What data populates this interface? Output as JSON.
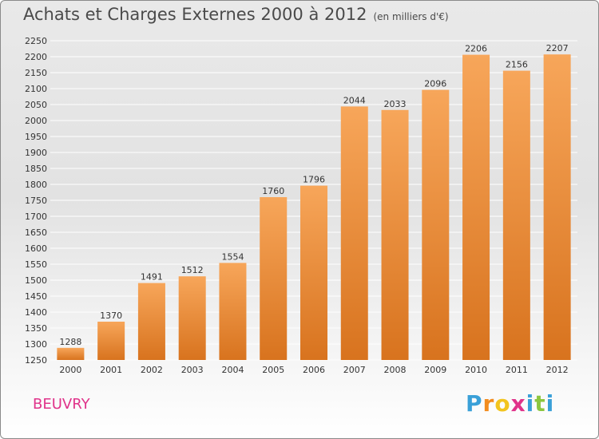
{
  "colors": {
    "bar_light": "#f7a65a",
    "bar_dark": "#d8731e",
    "grid": "#ffffff",
    "axis_text": "#333333",
    "city": "#e0338a"
  },
  "chart_data": {
    "type": "bar",
    "title": "Achats et Charges Externes 2000 à 2012",
    "subtitle": "(en milliers d'€)",
    "categories": [
      "2000",
      "2001",
      "2002",
      "2003",
      "2004",
      "2005",
      "2006",
      "2007",
      "2008",
      "2009",
      "2010",
      "2011",
      "2012"
    ],
    "values": [
      1288,
      1370,
      1491,
      1512,
      1554,
      1760,
      1796,
      2044,
      2033,
      2096,
      2206,
      2156,
      2207
    ],
    "ylim": [
      1250,
      2250
    ],
    "yticks": [
      1250,
      1300,
      1350,
      1400,
      1450,
      1500,
      1550,
      1600,
      1650,
      1700,
      1750,
      1800,
      1850,
      1900,
      1950,
      2000,
      2050,
      2100,
      2150,
      2200,
      2250
    ],
    "grid": true,
    "xlabel": "",
    "ylabel": ""
  },
  "footer": {
    "city": "BEUVRY",
    "brand_letters": [
      "P",
      "r",
      "o",
      "x",
      "i",
      "t",
      "i"
    ],
    "brand_colors": [
      "#3aa0d8",
      "#f28c1e",
      "#f2c41e",
      "#e0338a",
      "#3aa0d8",
      "#8cc63f",
      "#3aa0d8"
    ]
  }
}
